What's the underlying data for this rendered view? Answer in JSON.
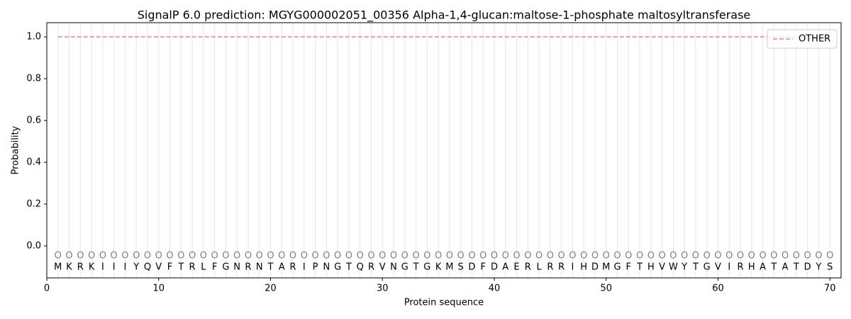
{
  "chart_data": {
    "type": "line",
    "title": "SignalP 6.0 prediction: MGYG000002051_00356 Alpha-1,4-glucan:maltose-1-phosphate maltosyltransferase",
    "xlabel": "Protein sequence",
    "ylabel": "Probability",
    "x": [
      1,
      2,
      3,
      4,
      5,
      6,
      7,
      8,
      9,
      10,
      11,
      12,
      13,
      14,
      15,
      16,
      17,
      18,
      19,
      20,
      21,
      22,
      23,
      24,
      25,
      26,
      27,
      28,
      29,
      30,
      31,
      32,
      33,
      34,
      35,
      36,
      37,
      38,
      39,
      40,
      41,
      42,
      43,
      44,
      45,
      46,
      47,
      48,
      49,
      50,
      51,
      52,
      53,
      54,
      55,
      56,
      57,
      58,
      59,
      60,
      61,
      62,
      63,
      64,
      65,
      66,
      67,
      68,
      69,
      70
    ],
    "residues": [
      "M",
      "K",
      "R",
      "K",
      "I",
      "I",
      "I",
      "Y",
      "Q",
      "V",
      "F",
      "T",
      "R",
      "L",
      "F",
      "G",
      "N",
      "R",
      "N",
      "T",
      "A",
      "R",
      "I",
      "P",
      "N",
      "G",
      "T",
      "Q",
      "R",
      "V",
      "N",
      "G",
      "T",
      "G",
      "K",
      "M",
      "S",
      "D",
      "F",
      "D",
      "A",
      "E",
      "R",
      "L",
      "R",
      "R",
      "I",
      "H",
      "D",
      "M",
      "G",
      "F",
      "T",
      "H",
      "V",
      "W",
      "Y",
      "T",
      "G",
      "V",
      "I",
      "R",
      "H",
      "A",
      "T",
      "A",
      "T",
      "D",
      "Y",
      "S"
    ],
    "predictions": [
      "O",
      "O",
      "O",
      "O",
      "O",
      "O",
      "O",
      "O",
      "O",
      "O",
      "O",
      "O",
      "O",
      "O",
      "O",
      "O",
      "O",
      "O",
      "O",
      "O",
      "O",
      "O",
      "O",
      "O",
      "O",
      "O",
      "O",
      "O",
      "O",
      "O",
      "O",
      "O",
      "O",
      "O",
      "O",
      "O",
      "O",
      "O",
      "O",
      "O",
      "O",
      "O",
      "O",
      "O",
      "O",
      "O",
      "O",
      "O",
      "O",
      "O",
      "O",
      "O",
      "O",
      "O",
      "O",
      "O",
      "O",
      "O",
      "O",
      "O",
      "O",
      "O",
      "O",
      "O",
      "O",
      "O",
      "O",
      "O",
      "O",
      "O"
    ],
    "series": [
      {
        "name": "OTHER",
        "color": "#f08080",
        "dashed": true,
        "values": [
          1,
          1,
          1,
          1,
          1,
          1,
          1,
          1,
          1,
          1,
          1,
          1,
          1,
          1,
          1,
          1,
          1,
          1,
          1,
          1,
          1,
          1,
          1,
          1,
          1,
          1,
          1,
          1,
          1,
          1,
          1,
          1,
          1,
          1,
          1,
          1,
          1,
          1,
          1,
          1,
          1,
          1,
          1,
          1,
          1,
          1,
          1,
          1,
          1,
          1,
          1,
          1,
          1,
          1,
          1,
          1,
          1,
          1,
          1,
          1,
          1,
          1,
          1,
          1,
          1,
          1,
          1,
          1,
          1,
          1
        ]
      }
    ],
    "xlim": [
      0,
      71
    ],
    "ylim": [
      -0.153,
      1.068
    ],
    "xticks": [
      0,
      10,
      20,
      30,
      40,
      50,
      60,
      70
    ],
    "yticks": [
      {
        "value": 0,
        "label": "0.0"
      },
      {
        "value": 0.2,
        "label": "0.2"
      },
      {
        "value": 0.4,
        "label": "0.4"
      },
      {
        "value": 0.6,
        "label": "0.6"
      },
      {
        "value": 0.8,
        "label": "0.8"
      },
      {
        "value": 1,
        "label": "1.0"
      }
    ],
    "legend": "upper right"
  }
}
